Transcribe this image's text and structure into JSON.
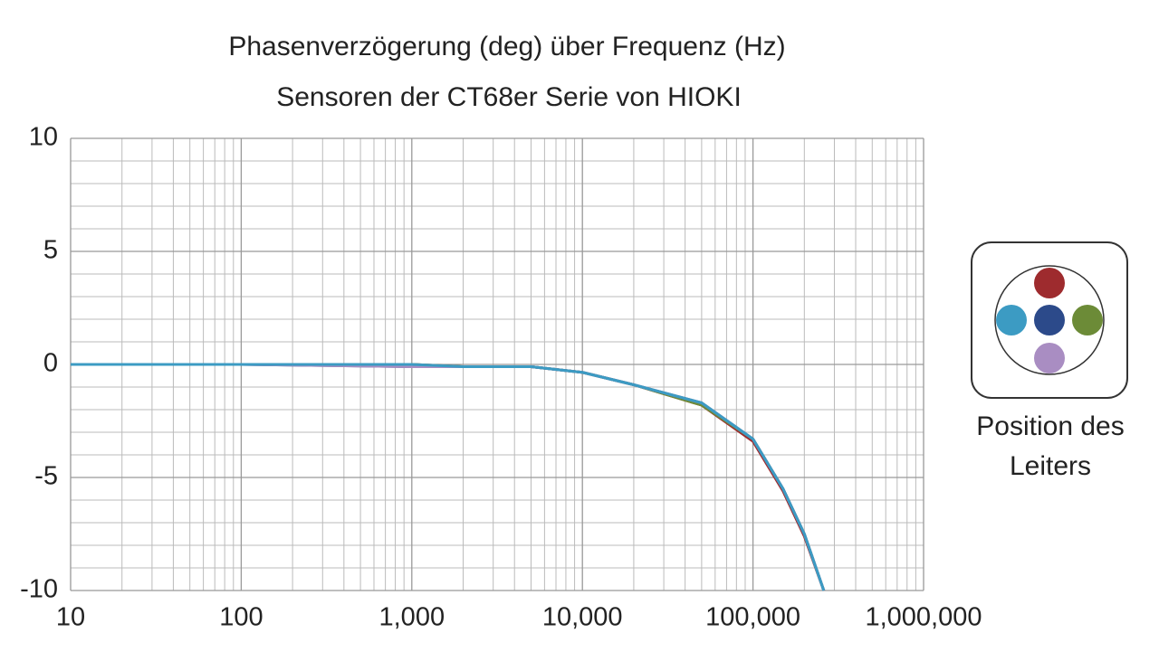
{
  "chart_data": {
    "type": "line",
    "title": "Phasenverzögerung (deg) über Frequenz (Hz)",
    "subtitle": "Sensoren der CT68er Serie von HIOKI",
    "legend_title": "Position des Leiters",
    "x": [
      10,
      100,
      1000,
      2000,
      5000,
      10000,
      20000,
      50000,
      100000,
      150000,
      200000,
      260000
    ],
    "series": [
      {
        "color": "#9e2b2e",
        "values": [
          0,
          0,
          0,
          -0.1,
          -0.1,
          -0.35,
          -0.9,
          -1.8,
          -3.4,
          -5.6,
          -7.6,
          -10
        ]
      },
      {
        "color": "#6c8b37",
        "values": [
          0,
          0,
          0,
          -0.1,
          -0.1,
          -0.35,
          -0.9,
          -1.8,
          -3.3,
          -5.5,
          -7.5,
          -10
        ]
      },
      {
        "color": "#2c4a8a",
        "values": [
          0,
          0,
          -0.1,
          -0.1,
          -0.1,
          -0.35,
          -0.9,
          -1.7,
          -3.3,
          -5.5,
          -7.5,
          -10
        ]
      },
      {
        "color": "#a98dc2",
        "values": [
          0,
          0,
          -0.1,
          -0.1,
          -0.1,
          -0.35,
          -0.9,
          -1.7,
          -3.3,
          -5.5,
          -7.5,
          -10
        ]
      },
      {
        "color": "#3c9bc3",
        "values": [
          0,
          0,
          0,
          -0.1,
          -0.1,
          -0.35,
          -0.9,
          -1.7,
          -3.3,
          -5.5,
          -7.5,
          -10
        ]
      }
    ],
    "xlog": true,
    "xlim": [
      10,
      1000000
    ],
    "xticks": [
      10,
      100,
      {
        "value": 1000,
        "label": "1,000"
      },
      {
        "value": 10000,
        "label": "10,000"
      },
      {
        "value": 100000,
        "label": "100,000"
      },
      {
        "value": 1000000,
        "label": "1,000,000"
      }
    ],
    "ylim": [
      -10,
      10
    ],
    "yticks": [
      -10,
      -5,
      0,
      5,
      10
    ],
    "grid": true,
    "minor_grid": true
  }
}
